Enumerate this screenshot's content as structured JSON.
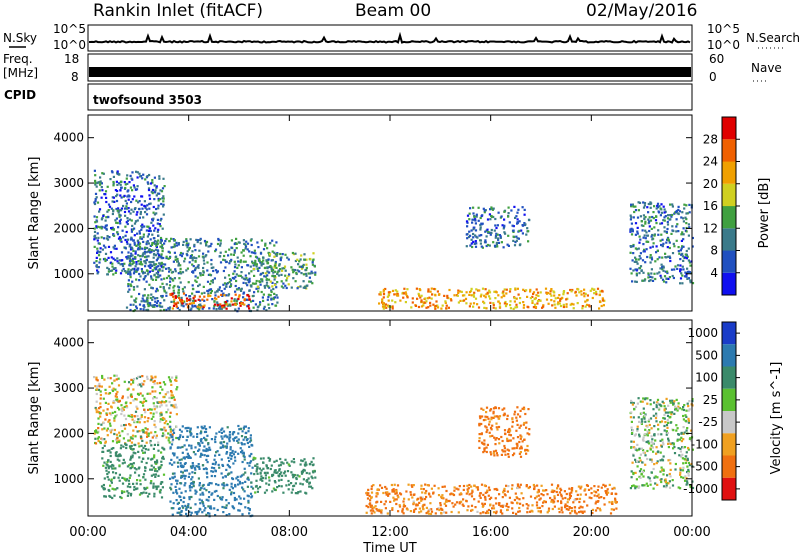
{
  "header": {
    "station": "Rankin Inlet (fitACF)",
    "beam": "Beam 00",
    "date": "02/May/2016"
  },
  "param_panels": {
    "nsky_label": "N.Sky",
    "nsky_ticks": [
      "10^5",
      "10^0"
    ],
    "nsearch_label": "N.Search",
    "nsearch_ticks": [
      "10^5",
      "10^0"
    ],
    "freq_label": "Freq.",
    "freq_unit": "[MHz]",
    "freq_ticks": [
      "18",
      "8"
    ],
    "nave_label": "Nave",
    "nave_ticks": [
      "60",
      "0"
    ],
    "cpid_label": "CPID",
    "cpid_value": "twofsound 3503"
  },
  "x_axis": {
    "label": "Time UT",
    "ticks": [
      "00:00",
      "04:00",
      "08:00",
      "12:00",
      "16:00",
      "20:00",
      "00:00"
    ]
  },
  "chart_data": [
    {
      "type": "heatmap",
      "name": "power",
      "x_range": [
        "00:00",
        "24:00"
      ],
      "ylabel": "Slant Range [km]",
      "ylim": [
        180,
        4500
      ],
      "y_ticks": [
        1000,
        2000,
        3000,
        4000
      ],
      "colorbar": {
        "label": "Power [dB]",
        "range": [
          0,
          32
        ],
        "ticks": [
          "4",
          "8",
          "12",
          "16",
          "20",
          "24",
          "28"
        ],
        "colors": [
          "#1010f0",
          "#2050c0",
          "#3a7a8a",
          "#40a040",
          "#d0d020",
          "#f0a000",
          "#f06000",
          "#e00000"
        ]
      },
      "regions": [
        {
          "t0": 0.2,
          "t1": 3.0,
          "r0": 1000,
          "r1": 3300,
          "level": 8
        },
        {
          "t0": 1.5,
          "t1": 7.5,
          "r0": 200,
          "r1": 1800,
          "level": 10
        },
        {
          "t0": 3.2,
          "t1": 6.5,
          "r0": 250,
          "r1": 600,
          "level": 27
        },
        {
          "t0": 6.5,
          "t1": 9.0,
          "r0": 700,
          "r1": 1500,
          "level": 12
        },
        {
          "t0": 11.5,
          "t1": 20.5,
          "r0": 250,
          "r1": 700,
          "level": 22
        },
        {
          "t0": 15.0,
          "t1": 17.5,
          "r0": 1600,
          "r1": 2500,
          "level": 8
        },
        {
          "t0": 21.5,
          "t1": 24.0,
          "r0": 800,
          "r1": 2600,
          "level": 9
        }
      ]
    },
    {
      "type": "heatmap",
      "name": "velocity",
      "x_range": [
        "00:00",
        "24:00"
      ],
      "ylabel": "Slant Range [km]",
      "ylim": [
        180,
        4500
      ],
      "y_ticks": [
        1000,
        2000,
        3000,
        4000
      ],
      "colorbar": {
        "label": "Velocity [m s^-1]",
        "ticks": [
          "1000",
          "500",
          "100",
          "25",
          "-25",
          "-100",
          "-500",
          "-1000"
        ],
        "colors": [
          "#1a3cc8",
          "#2c7ab0",
          "#3a8a6a",
          "#5ac030",
          "#c8c8c8",
          "#f0a020",
          "#f07010",
          "#e01010"
        ]
      },
      "regions": [
        {
          "t0": 0.2,
          "t1": 3.5,
          "r0": 1800,
          "r1": 3300,
          "level": -10
        },
        {
          "t0": 0.5,
          "t1": 3.0,
          "r0": 600,
          "r1": 1800,
          "level": 200
        },
        {
          "t0": 3.2,
          "t1": 6.5,
          "r0": 200,
          "r1": 2200,
          "level": 600
        },
        {
          "t0": 6.5,
          "t1": 9.0,
          "r0": 700,
          "r1": 1500,
          "level": 200
        },
        {
          "t0": 11.0,
          "t1": 21.0,
          "r0": 250,
          "r1": 900,
          "level": -150
        },
        {
          "t0": 15.5,
          "t1": 17.5,
          "r0": 1500,
          "r1": 2600,
          "level": -200
        },
        {
          "t0": 21.5,
          "t1": 24.0,
          "r0": 800,
          "r1": 2800,
          "level": 60
        }
      ]
    }
  ]
}
